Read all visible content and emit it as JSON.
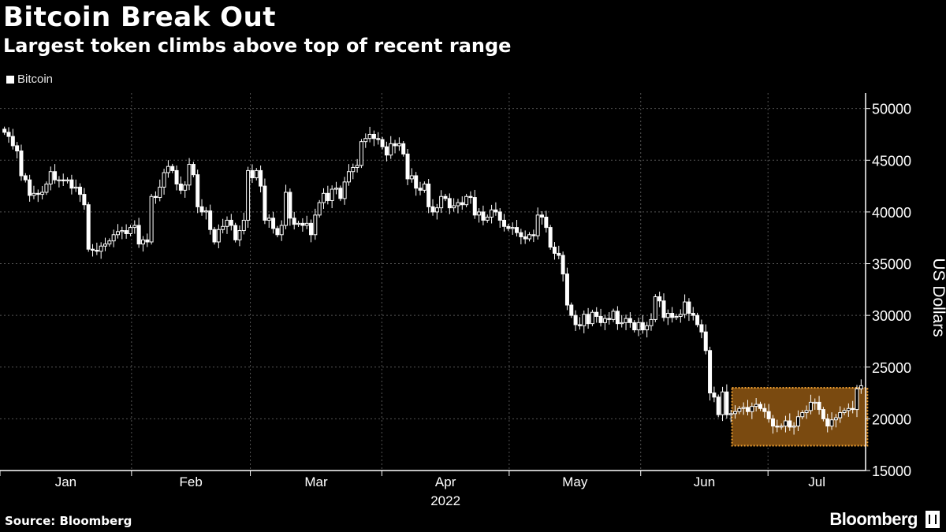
{
  "header": {
    "title": "Bitcoin Break Out",
    "subtitle": "Largest token climbs above top of recent range"
  },
  "legend": {
    "label": "Bitcoin"
  },
  "footer": {
    "source": "Source: Bloomberg",
    "brand": "Bloomberg"
  },
  "colors": {
    "background": "#000000",
    "candle": "#ffffff",
    "highlight_fill": "#7a4a10",
    "highlight_border": "#f0a030",
    "grid": "#555555"
  },
  "chart_data": {
    "type": "candlestick",
    "title": "Bitcoin Break Out",
    "subtitle": "Largest token climbs above top of recent range",
    "ylabel": "US Dollars",
    "xlabel": "",
    "year_label": "2022",
    "ylim": [
      15000,
      51500
    ],
    "y_ticks": [
      15000,
      20000,
      25000,
      30000,
      35000,
      40000,
      45000,
      50000
    ],
    "y_tick_labels": [
      "15000",
      "20000",
      "25000",
      "30000",
      "35000",
      "40000",
      "45000",
      "50000"
    ],
    "grid": true,
    "legend_position": "top-left",
    "series": [
      {
        "name": "Bitcoin"
      }
    ],
    "months": [
      "Jan",
      "Feb",
      "Mar",
      "Apr",
      "May",
      "Jun",
      "Jul"
    ],
    "date_range": [
      "2022-01-01",
      "2022-07-24"
    ],
    "closes": [
      47700,
      47300,
      46400,
      45900,
      43500,
      43100,
      41600,
      41800,
      41700,
      41900,
      42700,
      43900,
      43100,
      43100,
      43000,
      43100,
      42300,
      42400,
      41700,
      40700,
      36400,
      36300,
      36200,
      36700,
      36900,
      37200,
      37800,
      38100,
      38200,
      37900,
      38500,
      38700,
      36900,
      37300,
      37100,
      41500,
      41400,
      42400,
      43800,
      44400,
      44000,
      42700,
      42100,
      42600,
      44600,
      43600,
      40500,
      40000,
      40100,
      38300,
      37100,
      38300,
      38600,
      39200,
      38700,
      37300,
      38200,
      39200,
      44000,
      43300,
      44000,
      42500,
      39200,
      39400,
      38400,
      37800,
      38700,
      41900,
      39400,
      38800,
      38900,
      38700,
      38900,
      37800,
      39700,
      40900,
      41800,
      41100,
      42200,
      42300,
      41300,
      42900,
      43900,
      44300,
      44500,
      46800,
      47100,
      47500,
      47100,
      47000,
      46300,
      45500,
      46600,
      46400,
      46600,
      45600,
      43200,
      43500,
      42300,
      42100,
      42700,
      40500,
      40000,
      40400,
      41500,
      41300,
      40400,
      40600,
      40900,
      40700,
      41500,
      41400,
      39700,
      40000,
      39200,
      39500,
      40200,
      40000,
      39200,
      38600,
      38400,
      38500,
      38000,
      37600,
      37400,
      37800,
      37700,
      39700,
      39500,
      38500,
      36600,
      36000,
      35800,
      34000,
      31000,
      30000,
      29100,
      29000,
      30100,
      29200,
      30300,
      29900,
      29300,
      29700,
      29600,
      30400,
      29200,
      29300,
      29700,
      29300,
      28600,
      29300,
      28600,
      29000,
      29600,
      31800,
      31400,
      29800,
      30200,
      29800,
      29900,
      30100,
      31300,
      30200,
      30000,
      29100,
      28400,
      26600,
      22500,
      22100,
      20400,
      22600,
      20400,
      20500,
      20700,
      21000,
      21100,
      20700,
      21200,
      21400,
      21000,
      20700,
      20000,
      19300,
      19200,
      19300,
      19800,
      19200,
      19300,
      20200,
      20600,
      20800,
      21600,
      21600,
      20900,
      20000,
      19300,
      19900,
      20100,
      20600,
      20800,
      21000,
      20900,
      22900,
      23200
    ]
  }
}
